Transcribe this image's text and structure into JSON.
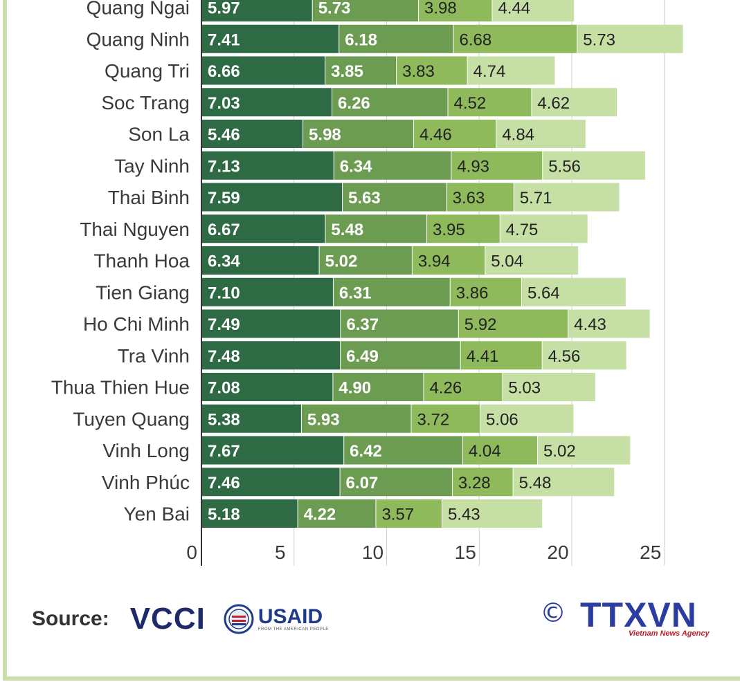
{
  "chart_data": {
    "type": "bar",
    "orientation": "horizontal",
    "stacked": true,
    "categories": [
      "Quang Ngai",
      "Quang Ninh",
      "Quang Tri",
      "Soc Trang",
      "Son La",
      "Tay Ninh",
      "Thai Binh",
      "Thai Nguyen",
      "Thanh Hoa",
      "Tien Giang",
      "Ho Chi Minh",
      "Tra Vinh",
      "Thua Thien Hue",
      "Tuyen Quang",
      "Vinh Long",
      "Vinh Phúc",
      "Yen Bai"
    ],
    "series": [
      {
        "values": [
          5.97,
          7.41,
          6.66,
          7.03,
          5.46,
          7.13,
          7.59,
          6.67,
          6.34,
          7.1,
          7.49,
          7.48,
          7.08,
          5.38,
          7.67,
          7.46,
          5.18
        ],
        "labels": [
          "5.97",
          "7.41",
          "6.66",
          "7.03",
          "5.46",
          "7.13",
          "7.59",
          "6.67",
          "6.34",
          "7.10",
          "7.49",
          "7.48",
          "7.08",
          "5.38",
          "7.67",
          "7.46",
          "5.18"
        ],
        "color": "#2e6b45"
      },
      {
        "values": [
          5.73,
          6.18,
          3.85,
          6.26,
          5.98,
          6.34,
          5.63,
          5.48,
          5.02,
          6.31,
          6.37,
          6.49,
          4.9,
          5.93,
          6.42,
          6.07,
          4.22
        ],
        "labels": [
          "5.73",
          "6.18",
          "3.85",
          "6.26",
          "5.98",
          "6.34",
          "5.63",
          "5.48",
          "5.02",
          "6.31",
          "6.37",
          "6.49",
          "4.90",
          "5.93",
          "6.42",
          "6.07",
          "4.22"
        ],
        "color": "#6b9c52"
      },
      {
        "values": [
          3.98,
          6.68,
          3.83,
          4.52,
          4.46,
          4.93,
          3.63,
          3.95,
          3.94,
          3.86,
          5.92,
          4.41,
          4.26,
          3.72,
          4.04,
          3.28,
          3.57
        ],
        "labels": [
          "3.98",
          "6.68",
          "3.83",
          "4.52",
          "4.46",
          "4.93",
          "3.63",
          "3.95",
          "3.94",
          "3.86",
          "5.92",
          "4.41",
          "4.26",
          "3.72",
          "4.04",
          "3.28",
          "3.57"
        ],
        "color": "#8fba5c"
      },
      {
        "values": [
          4.44,
          5.73,
          4.74,
          4.62,
          4.84,
          5.56,
          5.71,
          4.75,
          5.04,
          5.64,
          4.43,
          4.56,
          5.03,
          5.06,
          5.02,
          5.48,
          5.43
        ],
        "labels": [
          "4.44",
          "5.73",
          "4.74",
          "4.62",
          "4.84",
          "5.56",
          "5.71",
          "4.75",
          "5.04",
          "5.64",
          "4.43",
          "4.56",
          "5.03",
          "5.06",
          "5.02",
          "5.48",
          "5.43"
        ],
        "color": "#c6dfa5"
      }
    ],
    "xticks": [
      0,
      5,
      10,
      15,
      20,
      25
    ],
    "xlim": [
      0,
      25
    ],
    "grid": true
  },
  "footer": {
    "source_label": "Source:",
    "vcci_logo": "VCCI",
    "usaid_logo": "USAID",
    "usaid_tagline": "FROM THE AMERICAN PEOPLE",
    "copyright_symbol": "©",
    "ttxvn_logo": "TTXVN",
    "ttxvn_tagline": "Vietnam News Agency"
  }
}
